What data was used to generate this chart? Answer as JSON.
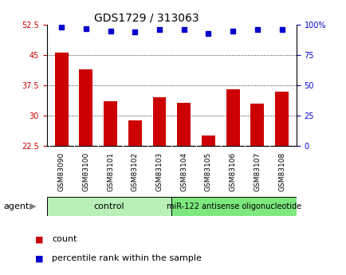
{
  "title": "GDS1729 / 313063",
  "samples": [
    "GSM83090",
    "GSM83100",
    "GSM83101",
    "GSM83102",
    "GSM83103",
    "GSM83104",
    "GSM83105",
    "GSM83106",
    "GSM83107",
    "GSM83108"
  ],
  "bar_values": [
    45.5,
    41.5,
    33.5,
    28.8,
    34.5,
    33.2,
    25.0,
    36.5,
    33.0,
    36.0
  ],
  "percentile_values": [
    98,
    97,
    95,
    94,
    96,
    96,
    93,
    95,
    96,
    96
  ],
  "bar_color": "#cc0000",
  "dot_color": "#0000cc",
  "ylim_left": [
    22.5,
    52.5
  ],
  "ylim_right": [
    0,
    100
  ],
  "yticks_left": [
    22.5,
    30,
    37.5,
    45,
    52.5
  ],
  "yticks_right": [
    0,
    25,
    50,
    75,
    100
  ],
  "ytick_labels_left": [
    "22.5",
    "30",
    "37.5",
    "45",
    "52.5"
  ],
  "ytick_labels_right": [
    "0",
    "25",
    "50",
    "75",
    "100%"
  ],
  "grid_values": [
    30,
    37.5,
    45
  ],
  "control_samples": 5,
  "control_label": "control",
  "treatment_label": "miR-122 antisense oligonucleotide",
  "agent_label": "agent",
  "legend_count_label": "count",
  "legend_percentile_label": "percentile rank within the sample",
  "control_color": "#b8f0b8",
  "treatment_color": "#7de87d",
  "label_area_color": "#cccccc",
  "bar_width": 0.55,
  "fig_bg": "#ffffff"
}
